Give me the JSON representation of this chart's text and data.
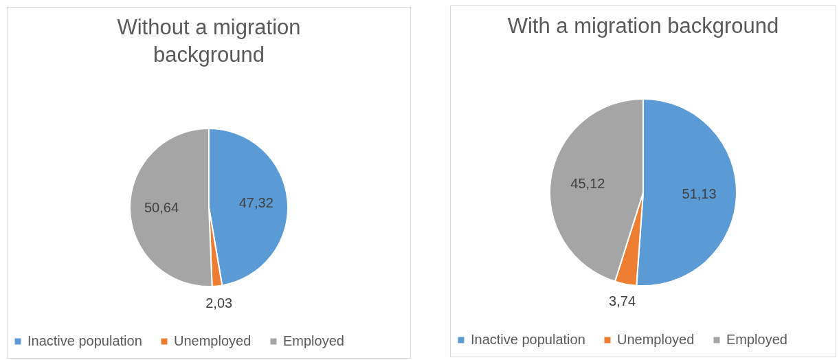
{
  "chart_data": [
    {
      "type": "pie",
      "title": "Without a migration background",
      "categories": [
        "Inactive population",
        "Unemployed",
        "Employed"
      ],
      "values": [
        47.32,
        2.03,
        50.64
      ],
      "value_labels": [
        "47,32",
        "2,03",
        "50,64"
      ],
      "colors": [
        "#5b9bd5",
        "#ed7d31",
        "#a5a5a5"
      ],
      "legend": "bottom"
    },
    {
      "type": "pie",
      "title": "With a migration background",
      "categories": [
        "Inactive population",
        "Unemployed",
        "Employed"
      ],
      "values": [
        51.13,
        3.74,
        45.12
      ],
      "value_labels": [
        "51,13",
        "3,74",
        "45,12"
      ],
      "colors": [
        "#5b9bd5",
        "#ed7d31",
        "#a5a5a5"
      ],
      "legend": "bottom"
    }
  ]
}
